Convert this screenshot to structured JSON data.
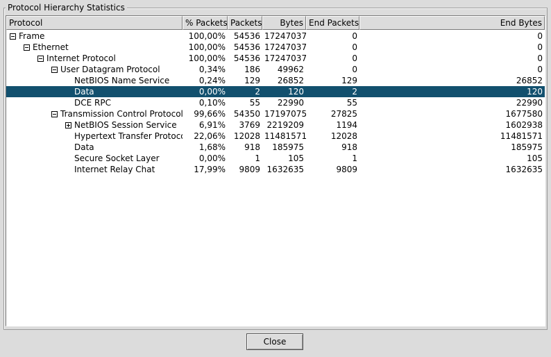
{
  "window": {
    "group_title": "Protocol Hierarchy Statistics"
  },
  "columns": [
    "Protocol",
    "% Packets",
    "Packets",
    "Bytes",
    "End Packets",
    "End Bytes"
  ],
  "rows": [
    {
      "protocol": "Frame",
      "level": 0,
      "expander": "minus",
      "pct": "100,00%",
      "packets": "54536",
      "bytes": "17247037",
      "end_packets": "0",
      "end_bytes": "0",
      "selected": false
    },
    {
      "protocol": "Ethernet",
      "level": 1,
      "expander": "minus",
      "pct": "100,00%",
      "packets": "54536",
      "bytes": "17247037",
      "end_packets": "0",
      "end_bytes": "0",
      "selected": false
    },
    {
      "protocol": "Internet Protocol",
      "level": 2,
      "expander": "minus",
      "pct": "100,00%",
      "packets": "54536",
      "bytes": "17247037",
      "end_packets": "0",
      "end_bytes": "0",
      "selected": false
    },
    {
      "protocol": "User Datagram Protocol",
      "level": 3,
      "expander": "minus",
      "pct": "0,34%",
      "packets": "186",
      "bytes": "49962",
      "end_packets": "0",
      "end_bytes": "0",
      "selected": false
    },
    {
      "protocol": "NetBIOS Name Service",
      "level": 4,
      "expander": "none",
      "pct": "0,24%",
      "packets": "129",
      "bytes": "26852",
      "end_packets": "129",
      "end_bytes": "26852",
      "selected": false
    },
    {
      "protocol": "Data",
      "level": 4,
      "expander": "none",
      "pct": "0,00%",
      "packets": "2",
      "bytes": "120",
      "end_packets": "2",
      "end_bytes": "120",
      "selected": true
    },
    {
      "protocol": "DCE RPC",
      "level": 4,
      "expander": "none",
      "pct": "0,10%",
      "packets": "55",
      "bytes": "22990",
      "end_packets": "55",
      "end_bytes": "22990",
      "selected": false
    },
    {
      "protocol": "Transmission Control Protocol",
      "level": 3,
      "expander": "minus",
      "pct": "99,66%",
      "packets": "54350",
      "bytes": "17197075",
      "end_packets": "27825",
      "end_bytes": "1677580",
      "selected": false
    },
    {
      "protocol": "NetBIOS Session Service",
      "level": 4,
      "expander": "plus",
      "pct": "6,91%",
      "packets": "3769",
      "bytes": "2219209",
      "end_packets": "1194",
      "end_bytes": "1602938",
      "selected": false
    },
    {
      "protocol": "Hypertext Transfer Protocol",
      "level": 4,
      "expander": "none",
      "pct": "22,06%",
      "packets": "12028",
      "bytes": "11481571",
      "end_packets": "12028",
      "end_bytes": "11481571",
      "selected": false
    },
    {
      "protocol": "Data",
      "level": 4,
      "expander": "none",
      "pct": "1,68%",
      "packets": "918",
      "bytes": "185975",
      "end_packets": "918",
      "end_bytes": "185975",
      "selected": false
    },
    {
      "protocol": "Secure Socket Layer",
      "level": 4,
      "expander": "none",
      "pct": "0,00%",
      "packets": "1",
      "bytes": "105",
      "end_packets": "1",
      "end_bytes": "105",
      "selected": false
    },
    {
      "protocol": "Internet Relay Chat",
      "level": 4,
      "expander": "none",
      "pct": "17,99%",
      "packets": "9809",
      "bytes": "1632635",
      "end_packets": "9809",
      "end_bytes": "1632635",
      "selected": false
    }
  ],
  "buttons": {
    "close": "Close"
  }
}
